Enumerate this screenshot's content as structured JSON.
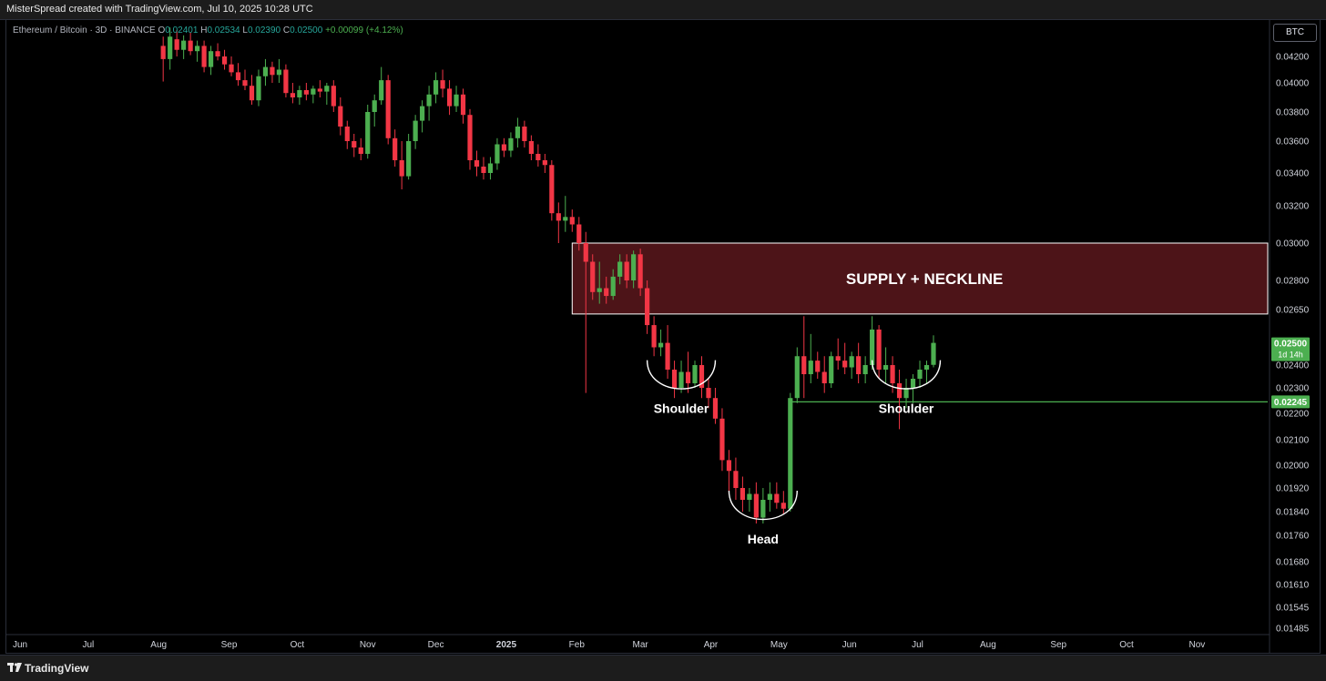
{
  "header": {
    "credit": "MisterSpread created with TradingView.com, Jul 10, 2025 10:28 UTC"
  },
  "legend": {
    "symbol": "Ethereum / Bitcoin · 3D · BINANCE",
    "open_label": "O",
    "open": "0.02401",
    "high_label": "H",
    "high": "0.02534",
    "low_label": "L",
    "low": "0.02390",
    "close_label": "C",
    "close": "0.02500",
    "change": "+0.00099 (+4.12%)"
  },
  "currency_button": "BTC",
  "footer": {
    "brand": "TradingView"
  },
  "colors": {
    "up": "#4caf50",
    "down": "#f23645",
    "zone_fill": "#4d1418",
    "zone_border": "#ffffff",
    "support_line": "#4caf50",
    "axis_text": "#d1d4dc"
  },
  "chart_data": {
    "type": "candlestick",
    "pair": "ETH/BTC",
    "timeframe": "3D",
    "exchange": "BINANCE",
    "x_ticks": [
      "Jun",
      "Jul",
      "Aug",
      "Sep",
      "Oct",
      "Nov",
      "Dec",
      "2025",
      "Feb",
      "Mar",
      "Apr",
      "May",
      "Jun",
      "Jul",
      "Aug",
      "Sep",
      "Oct",
      "Nov"
    ],
    "y_ticks": [
      "0.04200",
      "0.04000",
      "0.03800",
      "0.03600",
      "0.03400",
      "0.03200",
      "0.03000",
      "0.02800",
      "0.02650",
      "0.02400",
      "0.02300",
      "0.02200",
      "0.02100",
      "0.02000",
      "0.01920",
      "0.01840",
      "0.01760",
      "0.01680",
      "0.01610",
      "0.01545",
      "0.01485"
    ],
    "candles": [
      {
        "date": "2024-08-03",
        "o": 0.0428,
        "h": 0.0435,
        "l": 0.0401,
        "c": 0.0418
      },
      {
        "date": "2024-08-06",
        "o": 0.0418,
        "h": 0.0442,
        "l": 0.041,
        "c": 0.0435
      },
      {
        "date": "2024-08-09",
        "o": 0.0433,
        "h": 0.044,
        "l": 0.042,
        "c": 0.0425
      },
      {
        "date": "2024-08-12",
        "o": 0.0425,
        "h": 0.0436,
        "l": 0.0418,
        "c": 0.0432
      },
      {
        "date": "2024-08-15",
        "o": 0.0432,
        "h": 0.0438,
        "l": 0.0421,
        "c": 0.0424
      },
      {
        "date": "2024-08-18",
        "o": 0.0424,
        "h": 0.0432,
        "l": 0.0416,
        "c": 0.0428
      },
      {
        "date": "2024-08-21",
        "o": 0.0428,
        "h": 0.0432,
        "l": 0.0408,
        "c": 0.0412
      },
      {
        "date": "2024-08-24",
        "o": 0.0412,
        "h": 0.0428,
        "l": 0.0406,
        "c": 0.0424
      },
      {
        "date": "2024-08-27",
        "o": 0.0424,
        "h": 0.043,
        "l": 0.0417,
        "c": 0.042
      },
      {
        "date": "2024-08-30",
        "o": 0.042,
        "h": 0.0425,
        "l": 0.041,
        "c": 0.0414
      },
      {
        "date": "2024-09-02",
        "o": 0.0414,
        "h": 0.042,
        "l": 0.0405,
        "c": 0.0408
      },
      {
        "date": "2024-09-05",
        "o": 0.0408,
        "h": 0.0415,
        "l": 0.0398,
        "c": 0.0402
      },
      {
        "date": "2024-09-08",
        "o": 0.0402,
        "h": 0.041,
        "l": 0.0395,
        "c": 0.0398
      },
      {
        "date": "2024-09-11",
        "o": 0.0398,
        "h": 0.0406,
        "l": 0.0385,
        "c": 0.0388
      },
      {
        "date": "2024-09-14",
        "o": 0.0388,
        "h": 0.041,
        "l": 0.0384,
        "c": 0.0405
      },
      {
        "date": "2024-09-17",
        "o": 0.0405,
        "h": 0.0418,
        "l": 0.0398,
        "c": 0.0412
      },
      {
        "date": "2024-09-20",
        "o": 0.0412,
        "h": 0.0416,
        "l": 0.04,
        "c": 0.0406
      },
      {
        "date": "2024-09-23",
        "o": 0.0406,
        "h": 0.0418,
        "l": 0.04,
        "c": 0.041
      },
      {
        "date": "2024-09-26",
        "o": 0.041,
        "h": 0.0414,
        "l": 0.039,
        "c": 0.0393
      },
      {
        "date": "2024-09-29",
        "o": 0.0393,
        "h": 0.04,
        "l": 0.0386,
        "c": 0.039
      },
      {
        "date": "2024-10-02",
        "o": 0.039,
        "h": 0.0398,
        "l": 0.0385,
        "c": 0.0395
      },
      {
        "date": "2024-10-05",
        "o": 0.0395,
        "h": 0.04,
        "l": 0.0388,
        "c": 0.0392
      },
      {
        "date": "2024-10-08",
        "o": 0.0392,
        "h": 0.0398,
        "l": 0.0386,
        "c": 0.0396
      },
      {
        "date": "2024-10-11",
        "o": 0.0396,
        "h": 0.0402,
        "l": 0.039,
        "c": 0.0394
      },
      {
        "date": "2024-10-14",
        "o": 0.0394,
        "h": 0.04,
        "l": 0.0385,
        "c": 0.0398
      },
      {
        "date": "2024-10-17",
        "o": 0.0398,
        "h": 0.0402,
        "l": 0.038,
        "c": 0.0384
      },
      {
        "date": "2024-10-20",
        "o": 0.0384,
        "h": 0.039,
        "l": 0.0364,
        "c": 0.037
      },
      {
        "date": "2024-10-23",
        "o": 0.037,
        "h": 0.0374,
        "l": 0.0355,
        "c": 0.036
      },
      {
        "date": "2024-10-26",
        "o": 0.036,
        "h": 0.0365,
        "l": 0.035,
        "c": 0.0356
      },
      {
        "date": "2024-10-29",
        "o": 0.0356,
        "h": 0.0362,
        "l": 0.0348,
        "c": 0.0352
      },
      {
        "date": "2024-11-01",
        "o": 0.0352,
        "h": 0.0385,
        "l": 0.0349,
        "c": 0.038
      },
      {
        "date": "2024-11-04",
        "o": 0.038,
        "h": 0.0392,
        "l": 0.037,
        "c": 0.0388
      },
      {
        "date": "2024-11-07",
        "o": 0.0388,
        "h": 0.0412,
        "l": 0.0385,
        "c": 0.0402
      },
      {
        "date": "2024-11-10",
        "o": 0.0402,
        "h": 0.0406,
        "l": 0.0358,
        "c": 0.0362
      },
      {
        "date": "2024-11-13",
        "o": 0.0362,
        "h": 0.0368,
        "l": 0.0344,
        "c": 0.0348
      },
      {
        "date": "2024-11-16",
        "o": 0.0348,
        "h": 0.036,
        "l": 0.033,
        "c": 0.0338
      },
      {
        "date": "2024-11-19",
        "o": 0.0338,
        "h": 0.0365,
        "l": 0.0336,
        "c": 0.036
      },
      {
        "date": "2024-11-22",
        "o": 0.036,
        "h": 0.0378,
        "l": 0.0355,
        "c": 0.0374
      },
      {
        "date": "2024-11-25",
        "o": 0.0374,
        "h": 0.0388,
        "l": 0.0366,
        "c": 0.0384
      },
      {
        "date": "2024-11-28",
        "o": 0.0384,
        "h": 0.0398,
        "l": 0.0374,
        "c": 0.0392
      },
      {
        "date": "2024-12-01",
        "o": 0.0392,
        "h": 0.0408,
        "l": 0.0386,
        "c": 0.0402
      },
      {
        "date": "2024-12-04",
        "o": 0.0402,
        "h": 0.041,
        "l": 0.039,
        "c": 0.0396
      },
      {
        "date": "2024-12-07",
        "o": 0.0396,
        "h": 0.0402,
        "l": 0.0378,
        "c": 0.0384
      },
      {
        "date": "2024-12-10",
        "o": 0.0384,
        "h": 0.0398,
        "l": 0.038,
        "c": 0.0392
      },
      {
        "date": "2024-12-13",
        "o": 0.0392,
        "h": 0.0396,
        "l": 0.0372,
        "c": 0.0378
      },
      {
        "date": "2024-12-16",
        "o": 0.0378,
        "h": 0.0382,
        "l": 0.0342,
        "c": 0.0348
      },
      {
        "date": "2024-12-19",
        "o": 0.0348,
        "h": 0.0354,
        "l": 0.0338,
        "c": 0.0344
      },
      {
        "date": "2024-12-22",
        "o": 0.0344,
        "h": 0.035,
        "l": 0.0336,
        "c": 0.034
      },
      {
        "date": "2024-12-25",
        "o": 0.034,
        "h": 0.035,
        "l": 0.0336,
        "c": 0.0346
      },
      {
        "date": "2024-12-28",
        "o": 0.0346,
        "h": 0.0362,
        "l": 0.0342,
        "c": 0.0358
      },
      {
        "date": "2024-12-31",
        "o": 0.0358,
        "h": 0.0362,
        "l": 0.035,
        "c": 0.0354
      },
      {
        "date": "2025-01-03",
        "o": 0.0354,
        "h": 0.0366,
        "l": 0.035,
        "c": 0.0362
      },
      {
        "date": "2025-01-06",
        "o": 0.0362,
        "h": 0.0376,
        "l": 0.0356,
        "c": 0.037
      },
      {
        "date": "2025-01-09",
        "o": 0.037,
        "h": 0.0374,
        "l": 0.0356,
        "c": 0.036
      },
      {
        "date": "2025-01-12",
        "o": 0.036,
        "h": 0.0364,
        "l": 0.0348,
        "c": 0.0352
      },
      {
        "date": "2025-01-15",
        "o": 0.0352,
        "h": 0.0358,
        "l": 0.0344,
        "c": 0.0348
      },
      {
        "date": "2025-01-18",
        "o": 0.0348,
        "h": 0.0352,
        "l": 0.034,
        "c": 0.0345
      },
      {
        "date": "2025-01-21",
        "o": 0.0345,
        "h": 0.0348,
        "l": 0.0312,
        "c": 0.0316
      },
      {
        "date": "2025-01-24",
        "o": 0.0316,
        "h": 0.0322,
        "l": 0.03,
        "c": 0.0312
      },
      {
        "date": "2025-01-27",
        "o": 0.0312,
        "h": 0.0326,
        "l": 0.0306,
        "c": 0.0314
      },
      {
        "date": "2025-01-30",
        "o": 0.0314,
        "h": 0.0318,
        "l": 0.0306,
        "c": 0.031
      },
      {
        "date": "2025-02-02",
        "o": 0.031,
        "h": 0.0314,
        "l": 0.0296,
        "c": 0.03
      },
      {
        "date": "2025-02-05",
        "o": 0.03,
        "h": 0.0306,
        "l": 0.0228,
        "c": 0.029
      },
      {
        "date": "2025-02-08",
        "o": 0.029,
        "h": 0.0294,
        "l": 0.027,
        "c": 0.0274
      },
      {
        "date": "2025-02-11",
        "o": 0.0274,
        "h": 0.029,
        "l": 0.0268,
        "c": 0.0276
      },
      {
        "date": "2025-02-14",
        "o": 0.0276,
        "h": 0.0282,
        "l": 0.0268,
        "c": 0.0272
      },
      {
        "date": "2025-02-17",
        "o": 0.0272,
        "h": 0.0286,
        "l": 0.027,
        "c": 0.0282
      },
      {
        "date": "2025-02-20",
        "o": 0.0282,
        "h": 0.0294,
        "l": 0.0278,
        "c": 0.029
      },
      {
        "date": "2025-02-23",
        "o": 0.029,
        "h": 0.0294,
        "l": 0.0276,
        "c": 0.028
      },
      {
        "date": "2025-02-26",
        "o": 0.028,
        "h": 0.0296,
        "l": 0.0276,
        "c": 0.0294
      },
      {
        "date": "2025-03-01",
        "o": 0.0294,
        "h": 0.0297,
        "l": 0.0272,
        "c": 0.0276
      },
      {
        "date": "2025-03-04",
        "o": 0.0276,
        "h": 0.028,
        "l": 0.0254,
        "c": 0.0258
      },
      {
        "date": "2025-03-07",
        "o": 0.0258,
        "h": 0.0262,
        "l": 0.0244,
        "c": 0.0248
      },
      {
        "date": "2025-03-10",
        "o": 0.0248,
        "h": 0.0256,
        "l": 0.0244,
        "c": 0.025
      },
      {
        "date": "2025-03-13",
        "o": 0.025,
        "h": 0.0258,
        "l": 0.0234,
        "c": 0.0238
      },
      {
        "date": "2025-03-16",
        "o": 0.0238,
        "h": 0.0242,
        "l": 0.0226,
        "c": 0.023
      },
      {
        "date": "2025-03-19",
        "o": 0.023,
        "h": 0.0242,
        "l": 0.0228,
        "c": 0.0237
      },
      {
        "date": "2025-03-22",
        "o": 0.0237,
        "h": 0.0246,
        "l": 0.0228,
        "c": 0.0232
      },
      {
        "date": "2025-03-25",
        "o": 0.0232,
        "h": 0.0242,
        "l": 0.023,
        "c": 0.024
      },
      {
        "date": "2025-03-28",
        "o": 0.024,
        "h": 0.0244,
        "l": 0.0226,
        "c": 0.023
      },
      {
        "date": "2025-03-31",
        "o": 0.023,
        "h": 0.0234,
        "l": 0.0222,
        "c": 0.0226
      },
      {
        "date": "2025-04-03",
        "o": 0.0226,
        "h": 0.023,
        "l": 0.0216,
        "c": 0.0218
      },
      {
        "date": "2025-04-06",
        "o": 0.0218,
        "h": 0.0222,
        "l": 0.0198,
        "c": 0.0202
      },
      {
        "date": "2025-04-09",
        "o": 0.0202,
        "h": 0.0206,
        "l": 0.019,
        "c": 0.0198
      },
      {
        "date": "2025-04-12",
        "o": 0.0198,
        "h": 0.0203,
        "l": 0.0188,
        "c": 0.0192
      },
      {
        "date": "2025-04-15",
        "o": 0.0192,
        "h": 0.0196,
        "l": 0.0184,
        "c": 0.0188
      },
      {
        "date": "2025-04-18",
        "o": 0.0188,
        "h": 0.0192,
        "l": 0.0184,
        "c": 0.019
      },
      {
        "date": "2025-04-21",
        "o": 0.019,
        "h": 0.0194,
        "l": 0.018,
        "c": 0.0182
      },
      {
        "date": "2025-04-24",
        "o": 0.0182,
        "h": 0.0192,
        "l": 0.018,
        "c": 0.0188
      },
      {
        "date": "2025-04-27",
        "o": 0.0188,
        "h": 0.0194,
        "l": 0.0184,
        "c": 0.019
      },
      {
        "date": "2025-04-30",
        "o": 0.019,
        "h": 0.0194,
        "l": 0.0185,
        "c": 0.0187
      },
      {
        "date": "2025-05-03",
        "o": 0.0187,
        "h": 0.0191,
        "l": 0.0183,
        "c": 0.0185
      },
      {
        "date": "2025-05-06",
        "o": 0.0185,
        "h": 0.0228,
        "l": 0.0184,
        "c": 0.0226
      },
      {
        "date": "2025-05-09",
        "o": 0.0226,
        "h": 0.0248,
        "l": 0.0224,
        "c": 0.0244
      },
      {
        "date": "2025-05-12",
        "o": 0.0244,
        "h": 0.0262,
        "l": 0.0226,
        "c": 0.0236
      },
      {
        "date": "2025-05-15",
        "o": 0.0236,
        "h": 0.0254,
        "l": 0.0232,
        "c": 0.0242
      },
      {
        "date": "2025-05-18",
        "o": 0.0242,
        "h": 0.0246,
        "l": 0.0234,
        "c": 0.0237
      },
      {
        "date": "2025-05-21",
        "o": 0.0237,
        "h": 0.0244,
        "l": 0.0228,
        "c": 0.0232
      },
      {
        "date": "2025-05-24",
        "o": 0.0232,
        "h": 0.0246,
        "l": 0.023,
        "c": 0.0244
      },
      {
        "date": "2025-05-27",
        "o": 0.0244,
        "h": 0.0252,
        "l": 0.0238,
        "c": 0.0242
      },
      {
        "date": "2025-05-30",
        "o": 0.0242,
        "h": 0.025,
        "l": 0.0236,
        "c": 0.0239
      },
      {
        "date": "2025-06-02",
        "o": 0.0239,
        "h": 0.0246,
        "l": 0.0234,
        "c": 0.0244
      },
      {
        "date": "2025-06-05",
        "o": 0.0244,
        "h": 0.025,
        "l": 0.0232,
        "c": 0.0236
      },
      {
        "date": "2025-06-08",
        "o": 0.0236,
        "h": 0.0244,
        "l": 0.0232,
        "c": 0.024
      },
      {
        "date": "2025-06-11",
        "o": 0.024,
        "h": 0.0262,
        "l": 0.0238,
        "c": 0.0256
      },
      {
        "date": "2025-06-14",
        "o": 0.0256,
        "h": 0.0258,
        "l": 0.0234,
        "c": 0.0238
      },
      {
        "date": "2025-06-17",
        "o": 0.0238,
        "h": 0.0248,
        "l": 0.0232,
        "c": 0.024
      },
      {
        "date": "2025-06-20",
        "o": 0.024,
        "h": 0.0244,
        "l": 0.0228,
        "c": 0.0232
      },
      {
        "date": "2025-06-23",
        "o": 0.0232,
        "h": 0.0238,
        "l": 0.0214,
        "c": 0.0226
      },
      {
        "date": "2025-06-26",
        "o": 0.0226,
        "h": 0.0234,
        "l": 0.0222,
        "c": 0.023
      },
      {
        "date": "2025-06-29",
        "o": 0.023,
        "h": 0.0236,
        "l": 0.0224,
        "c": 0.0234
      },
      {
        "date": "2025-07-02",
        "o": 0.0234,
        "h": 0.0242,
        "l": 0.023,
        "c": 0.0238
      },
      {
        "date": "2025-07-05",
        "o": 0.0238,
        "h": 0.0242,
        "l": 0.0232,
        "c": 0.024
      },
      {
        "date": "2025-07-08",
        "o": 0.02401,
        "h": 0.02534,
        "l": 0.0239,
        "c": 0.025
      }
    ],
    "zone": {
      "label": "SUPPLY + NECKLINE",
      "from_date": "2025-01-30",
      "low": 0.0263,
      "high": 0.03
    },
    "support_line": {
      "value": 0.02245,
      "from_date": "2025-05-06",
      "label": "0.02245"
    },
    "last_price": {
      "value": "0.02500",
      "countdown": "1d 14h"
    },
    "annotations": [
      {
        "label": "Shoulder",
        "from_date": "2025-03-04",
        "to_date": "2025-04-03",
        "price": 0.0228
      },
      {
        "label": "Head",
        "from_date": "2025-04-09",
        "to_date": "2025-05-09",
        "price": 0.018
      },
      {
        "label": "Shoulder",
        "from_date": "2025-06-11",
        "to_date": "2025-07-11",
        "price": 0.0228
      }
    ]
  }
}
